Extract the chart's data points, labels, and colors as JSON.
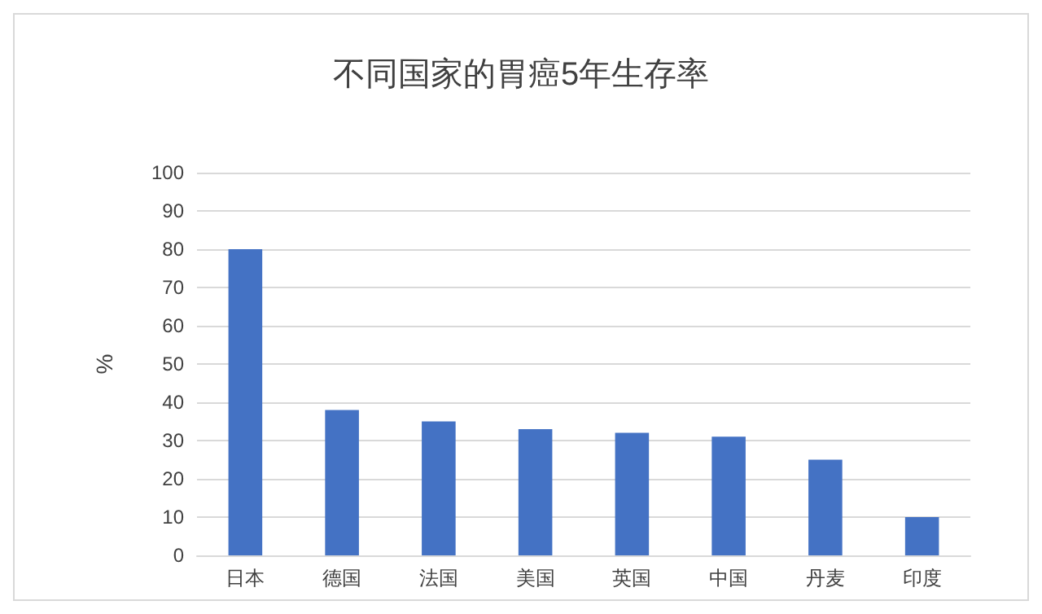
{
  "chart_data": {
    "type": "bar",
    "title": "不同国家的胃癌5年生存率",
    "ylabel": "%",
    "categories": [
      "日本",
      "德国",
      "法国",
      "美国",
      "英国",
      "中国",
      "丹麦",
      "印度"
    ],
    "values": [
      80,
      38,
      35,
      33,
      32,
      31,
      25,
      10
    ],
    "color": "#4472c4",
    "ylim": [
      0,
      100
    ],
    "yticks": [
      0,
      10,
      20,
      30,
      40,
      50,
      60,
      70,
      80,
      90,
      100
    ],
    "grid": "y"
  }
}
